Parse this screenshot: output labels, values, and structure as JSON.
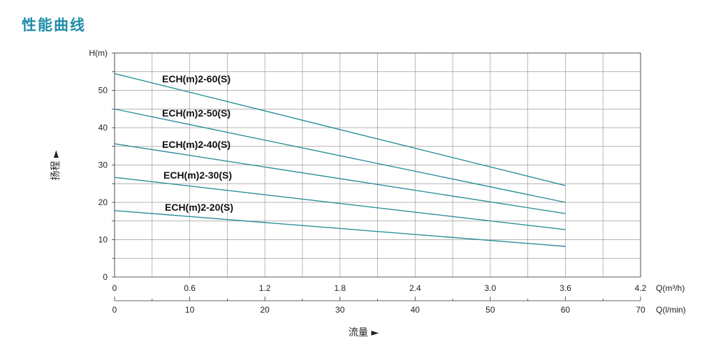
{
  "page": {
    "title": "性能曲线"
  },
  "colors": {
    "title": "#1e8ca8",
    "curve": "#2a8f9a",
    "grid": "#9a9a9a",
    "axis": "#333333"
  },
  "chart_data": {
    "type": "line",
    "title": "",
    "grid": true,
    "x_primary": {
      "label": "Q(m³/h)",
      "range": [
        0,
        4.2
      ],
      "ticks": [
        "0",
        "0.6",
        "1.2",
        "1.8",
        "2.4",
        "3.0",
        "3.6",
        "4.2"
      ]
    },
    "x_secondary": {
      "label": "Q(l/min)",
      "range": [
        0,
        70
      ],
      "ticks": [
        "0",
        "10",
        "20",
        "30",
        "40",
        "50",
        "60",
        "70"
      ]
    },
    "x_title": "流量 ►",
    "y": {
      "label": "H(m)",
      "range": [
        0,
        60
      ],
      "ticks": [
        "0",
        "10",
        "20",
        "30",
        "40",
        "50"
      ]
    },
    "y_title": "扬程 ►",
    "series": [
      {
        "name": "ECH(m)2-60(S)",
        "x": [
          0,
          3.6
        ],
        "y": [
          54.5,
          24.5
        ]
      },
      {
        "name": "ECH(m)2-50(S)",
        "x": [
          0,
          3.6
        ],
        "y": [
          45.0,
          20.0
        ]
      },
      {
        "name": "ECH(m)2-40(S)",
        "x": [
          0,
          3.6
        ],
        "y": [
          35.7,
          17.0
        ]
      },
      {
        "name": "ECH(m)2-30(S)",
        "x": [
          0,
          3.6
        ],
        "y": [
          26.7,
          12.7
        ]
      },
      {
        "name": "ECH(m)2-20(S)",
        "x": [
          0,
          3.6
        ],
        "y": [
          17.8,
          8.2
        ]
      }
    ]
  }
}
